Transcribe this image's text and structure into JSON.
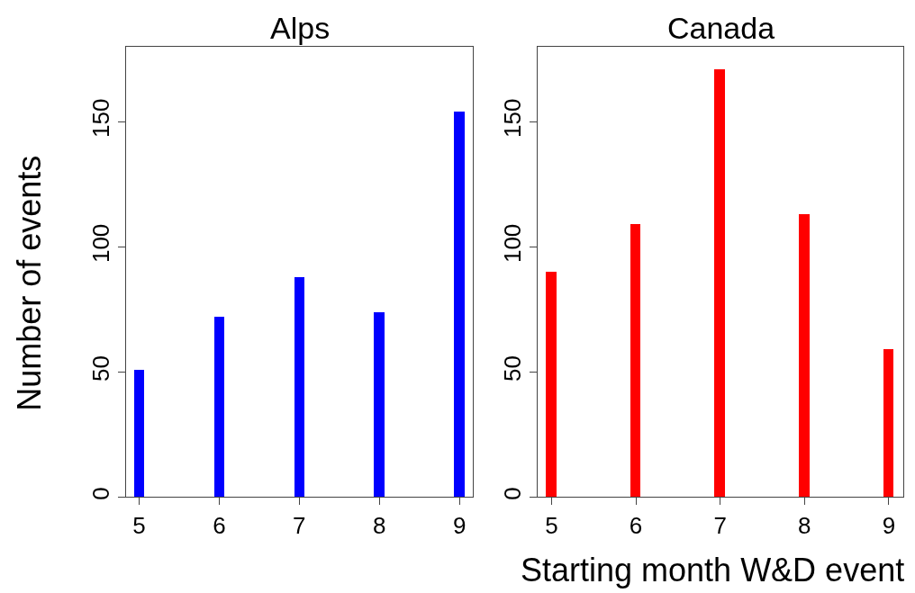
{
  "chart_data": [
    {
      "type": "bar",
      "title": "Alps",
      "ylabel": "Number of events",
      "x": [
        5,
        6,
        7,
        8,
        9
      ],
      "values": [
        51,
        72,
        88,
        74,
        154
      ],
      "color": "#0000ff",
      "xlim": [
        4.84,
        9.17
      ],
      "xticks": [
        5,
        6,
        7,
        8,
        9
      ],
      "ylim": [
        0,
        180
      ],
      "yticks": [
        0,
        50,
        100,
        150
      ]
    },
    {
      "type": "bar",
      "title": "Canada",
      "xlabel": "Starting month W&D event",
      "x": [
        5,
        6,
        7,
        8,
        9
      ],
      "values": [
        90,
        109,
        171,
        113,
        59
      ],
      "color": "#ff0000",
      "xlim": [
        4.84,
        9.17
      ],
      "xticks": [
        5,
        6,
        7,
        8,
        9
      ],
      "ylim": [
        0,
        180
      ],
      "yticks": [
        0,
        50,
        100,
        150
      ]
    }
  ]
}
